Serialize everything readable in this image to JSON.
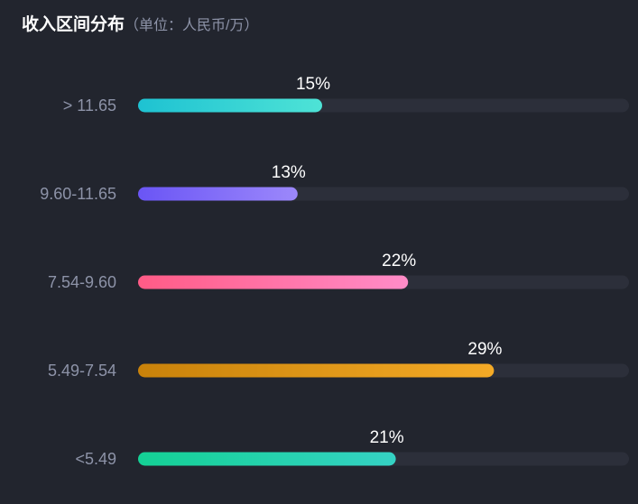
{
  "header": {
    "title": "收入区间分布",
    "unit": "（单位：人民币/万）"
  },
  "colors": {
    "background": "#22252e",
    "track": "#2c2f3a",
    "series": [
      [
        "#1ec2d2",
        "#4ee3d6"
      ],
      [
        "#6a55f5",
        "#9c88fb"
      ],
      [
        "#ff5b86",
        "#ff8cc8"
      ],
      [
        "#c9820a",
        "#f4aa26"
      ],
      [
        "#14d195",
        "#35d2c4"
      ]
    ]
  },
  "chart_data": {
    "type": "bar",
    "orientation": "horizontal",
    "title": "收入区间分布",
    "subtitle": "（单位：人民币/万）",
    "categories": [
      "> 11.65",
      "9.60-11.65",
      "7.54-9.60",
      "5.49-7.54",
      "<5.49"
    ],
    "values": [
      15,
      13,
      22,
      29,
      21
    ],
    "labels": [
      "15%",
      "13%",
      "22%",
      "29%",
      "21%"
    ],
    "value_unit": "%",
    "xlim": [
      0,
      40
    ],
    "grid": false
  }
}
